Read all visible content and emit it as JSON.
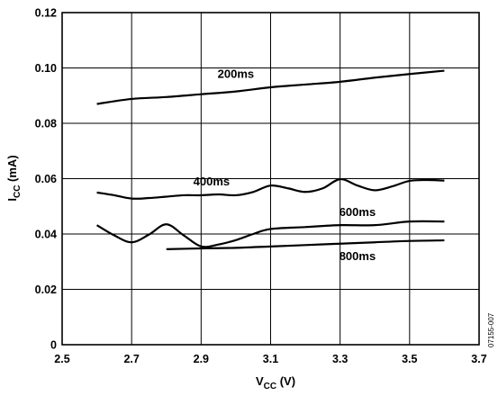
{
  "chart_data": {
    "type": "line",
    "xlabel_main": "V",
    "xlabel_sub": "CC",
    "xlabel_unit": " (V)",
    "ylabel_main": "I",
    "ylabel_sub": "CC",
    "ylabel_unit": " (mA)",
    "xlim": [
      2.5,
      3.7
    ],
    "ylim": [
      0,
      0.12
    ],
    "xticks": [
      "2.5",
      "2.7",
      "2.9",
      "3.1",
      "3.3",
      "3.5",
      "3.7"
    ],
    "yticks": [
      "0",
      "0.02",
      "0.04",
      "0.06",
      "0.08",
      "0.10",
      "0.12"
    ],
    "grid": true,
    "figure_id": "07155-007",
    "series": [
      {
        "name": "200ms",
        "x": [
          2.6,
          2.7,
          2.8,
          2.9,
          3.0,
          3.1,
          3.2,
          3.3,
          3.4,
          3.5,
          3.6
        ],
        "y": [
          0.087,
          0.0888,
          0.0895,
          0.0905,
          0.0915,
          0.093,
          0.094,
          0.095,
          0.0965,
          0.0978,
          0.099
        ]
      },
      {
        "name": "400ms",
        "x": [
          2.6,
          2.65,
          2.7,
          2.75,
          2.8,
          2.85,
          2.9,
          2.95,
          3.0,
          3.05,
          3.1,
          3.15,
          3.2,
          3.25,
          3.3,
          3.35,
          3.4,
          3.45,
          3.5,
          3.55,
          3.6
        ],
        "y": [
          0.055,
          0.054,
          0.0528,
          0.053,
          0.0535,
          0.054,
          0.054,
          0.0543,
          0.054,
          0.0552,
          0.0575,
          0.0565,
          0.0552,
          0.0565,
          0.0598,
          0.0575,
          0.0558,
          0.0572,
          0.0592,
          0.0595,
          0.0593
        ]
      },
      {
        "name": "600ms",
        "x": [
          2.6,
          2.65,
          2.7,
          2.75,
          2.8,
          2.85,
          2.9,
          2.95,
          3.0,
          3.05,
          3.1,
          3.2,
          3.3,
          3.4,
          3.5,
          3.6
        ],
        "y": [
          0.0432,
          0.0395,
          0.037,
          0.0398,
          0.0435,
          0.0395,
          0.0355,
          0.0362,
          0.0378,
          0.04,
          0.0418,
          0.0425,
          0.0432,
          0.0432,
          0.0445,
          0.0445
        ]
      },
      {
        "name": "800ms",
        "x": [
          2.8,
          2.9,
          3.0,
          3.1,
          3.2,
          3.3,
          3.4,
          3.5,
          3.6
        ],
        "y": [
          0.0345,
          0.0348,
          0.035,
          0.0355,
          0.036,
          0.0365,
          0.037,
          0.0375,
          0.0377
        ]
      }
    ]
  }
}
